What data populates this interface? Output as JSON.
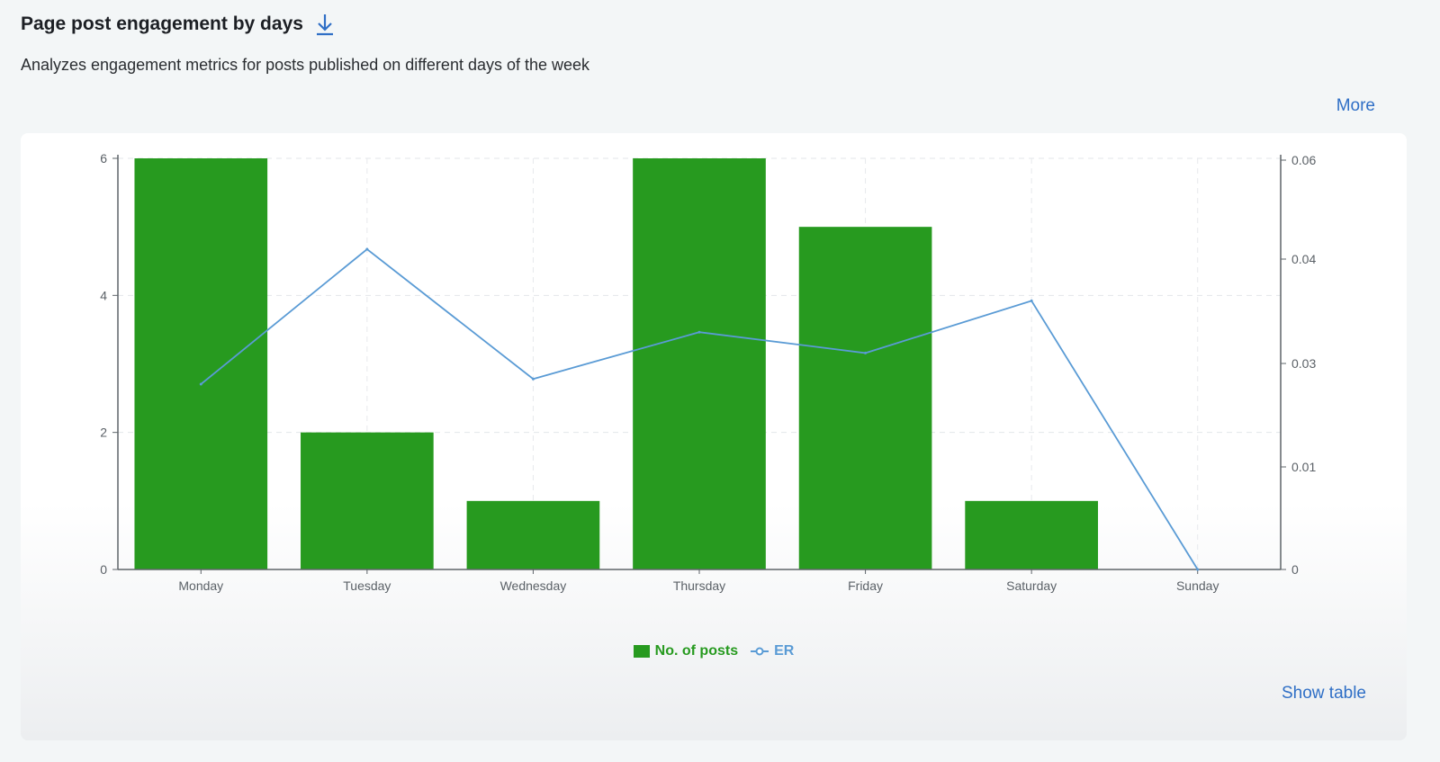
{
  "header": {
    "title": "Page post engagement by days",
    "subtitle": "Analyzes engagement metrics for posts published on different days of the week",
    "download_icon": "download-icon"
  },
  "more_label": "More",
  "show_table_label": "Show table",
  "colors": {
    "bar": "#279a1f",
    "line": "#5a9bd5",
    "link": "#2f6fc6"
  },
  "legend": {
    "posts_label": "No. of posts",
    "er_label": "ER"
  },
  "chart_data": {
    "type": "bar",
    "categories": [
      "Monday",
      "Tuesday",
      "Wednesday",
      "Thursday",
      "Friday",
      "Saturday",
      "Sunday"
    ],
    "series": [
      {
        "name": "No. of posts",
        "type": "bar",
        "axis": "left",
        "values": [
          6,
          2,
          1,
          6,
          5,
          1,
          0
        ]
      },
      {
        "name": "ER",
        "type": "line",
        "axis": "right",
        "values": [
          0.026,
          0.042,
          0.027,
          0.033,
          0.031,
          0.036,
          0
        ]
      }
    ],
    "y_left": {
      "ticks": [
        0,
        2,
        4,
        6
      ],
      "range": [
        0,
        6
      ]
    },
    "y_right": {
      "ticks": [
        "0",
        "0.01",
        "0.03",
        "0.04",
        "0.06"
      ]
    },
    "grid": true,
    "legend_position": "bottom-center"
  }
}
